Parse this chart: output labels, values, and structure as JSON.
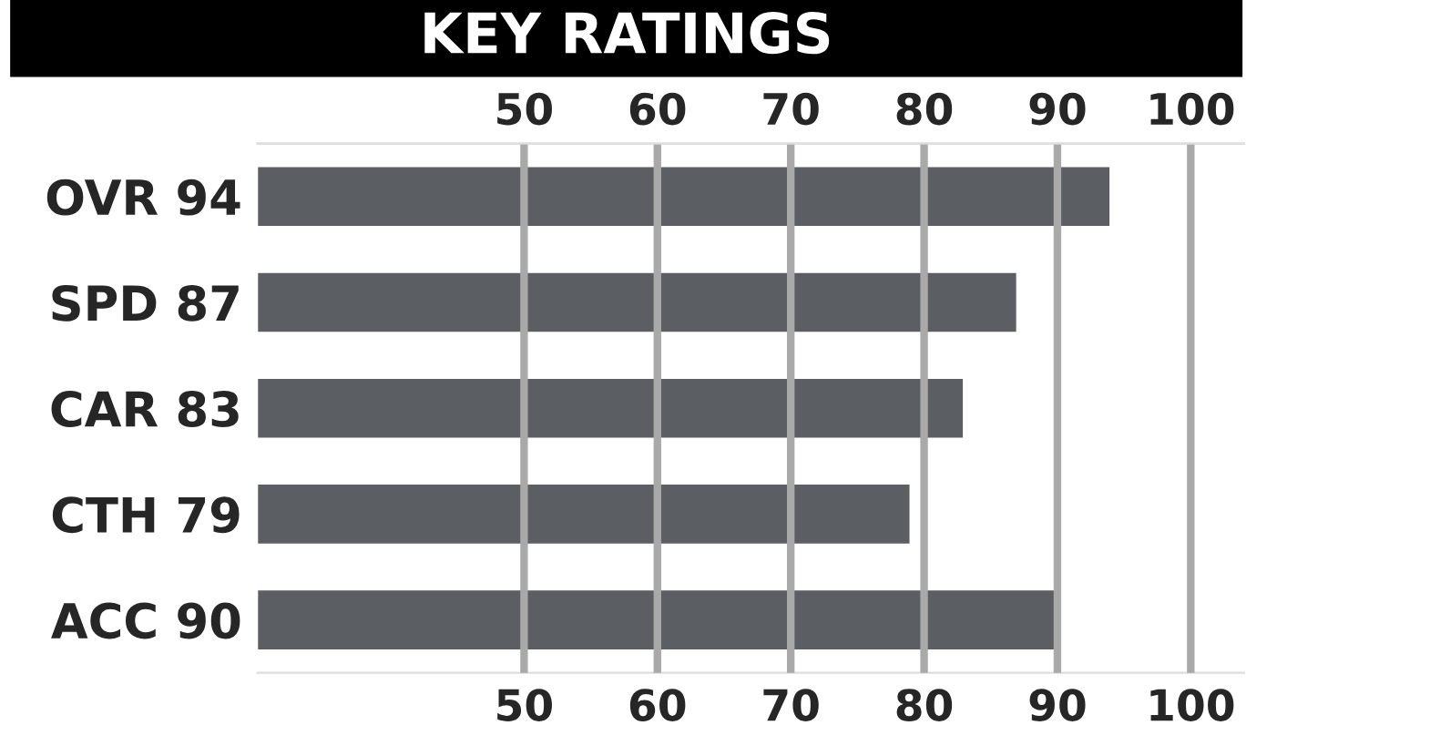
{
  "chart_data": {
    "type": "bar",
    "orientation": "horizontal",
    "title": "KEY RATINGS",
    "categories": [
      "OVR 94",
      "SPD 87",
      "CAR 83",
      "CTH 79",
      "ACC 90"
    ],
    "values": [
      94,
      87,
      83,
      79,
      90
    ],
    "color": "#5b5e62",
    "xlim": [
      30,
      104
    ],
    "xticks": [
      50,
      60,
      70,
      80,
      90,
      100
    ],
    "x2lim": [
      30,
      104
    ],
    "x2ticks": [
      50,
      60,
      70,
      80,
      90,
      100
    ],
    "grid": "x"
  }
}
